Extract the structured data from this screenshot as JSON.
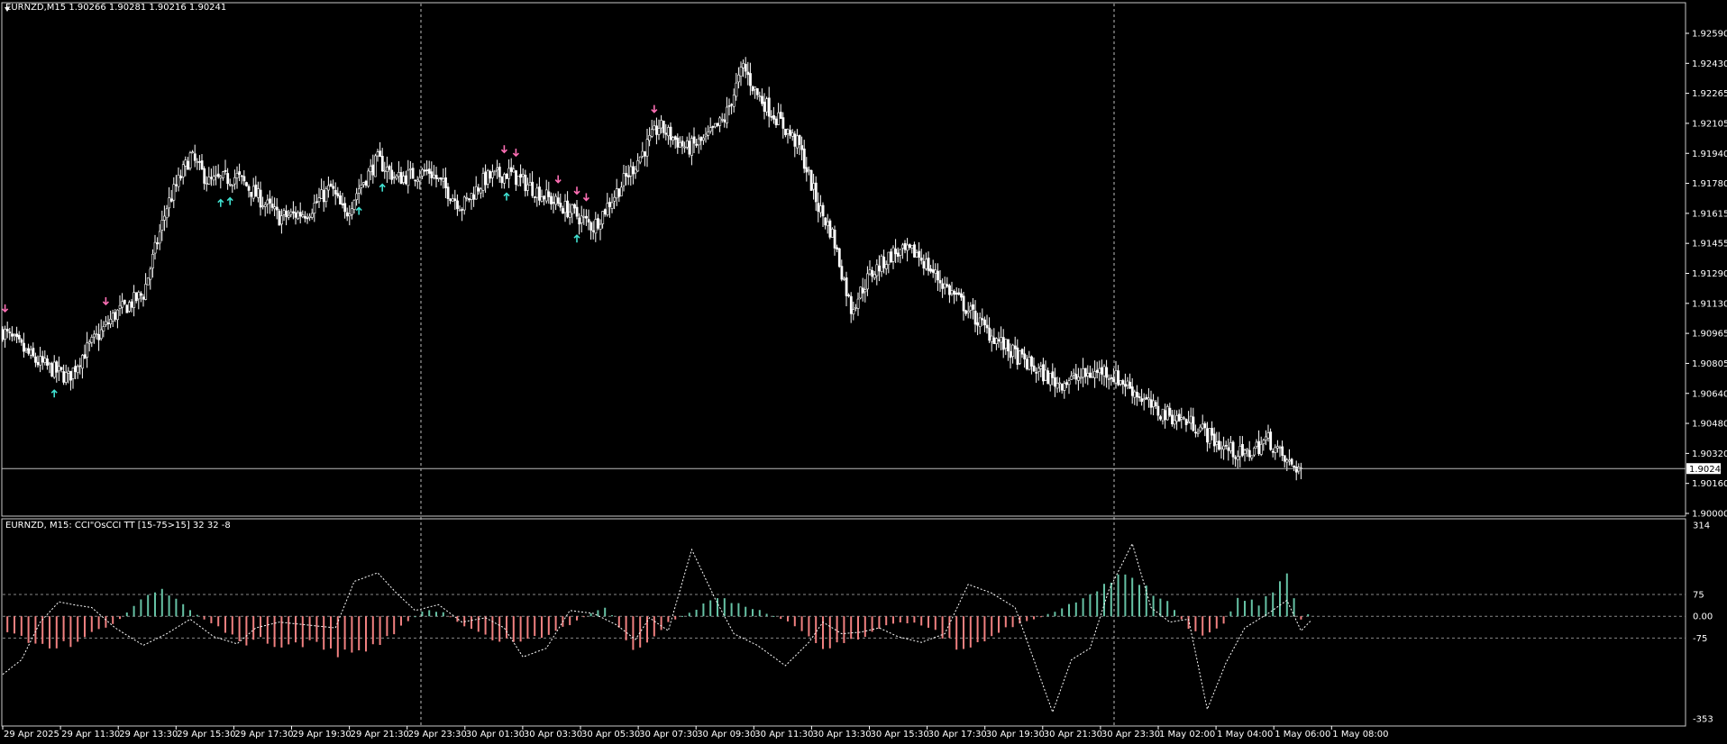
{
  "main_title": "EURNZD,M15  1.90266 1.90281 1.90216 1.90241",
  "sub_title": "EURNZD, M15: CCI\"OsCCI TT [15-75>15]  32 32 -8",
  "current_price_label": "1.90241",
  "chart_data": [
    {
      "type": "candlestick",
      "symbol": "EURNZD",
      "timeframe": "M15",
      "ohlc": {
        "open": 1.90266,
        "high": 1.90281,
        "low": 1.90216,
        "close": 1.90241
      },
      "price_ticks": [
        "1.92590",
        "1.92430",
        "1.92265",
        "1.92105",
        "1.91940",
        "1.91780",
        "1.91615",
        "1.91455",
        "1.91290",
        "1.91130",
        "1.90965",
        "1.90805",
        "1.90640",
        "1.90480",
        "1.90320",
        "1.90160",
        "1.90000"
      ],
      "ylim": [
        1.9,
        1.9259
      ],
      "current_price": 1.90241,
      "time_ticks": [
        "29 Apr 2025",
        "29 Apr 11:30",
        "29 Apr 13:30",
        "29 Apr 15:30",
        "29 Apr 17:30",
        "29 Apr 19:30",
        "29 Apr 21:30",
        "29 Apr 23:30",
        "30 Apr 01:30",
        "30 Apr 03:30",
        "30 Apr 05:30",
        "30 Apr 07:30",
        "30 Apr 09:30",
        "30 Apr 11:30",
        "30 Apr 13:30",
        "30 Apr 15:30",
        "30 Apr 17:30",
        "30 Apr 19:30",
        "30 Apr 21:30",
        "30 Apr 23:30",
        "1 May 02:00",
        "1 May 04:00",
        "1 May 06:00",
        "1 May 08:00"
      ],
      "period_separators": [
        "29 Apr 23:30",
        "30 Apr 23:30"
      ],
      "close_path": [
        [
          0,
          1.9098
        ],
        [
          14,
          1.9082
        ],
        [
          28,
          1.9073
        ],
        [
          34,
          1.9085
        ],
        [
          48,
          1.9107
        ],
        [
          60,
          1.9118
        ],
        [
          70,
          1.9165
        ],
        [
          80,
          1.9192
        ],
        [
          88,
          1.9178
        ],
        [
          100,
          1.9181
        ],
        [
          118,
          1.9159
        ],
        [
          130,
          1.9162
        ],
        [
          140,
          1.9175
        ],
        [
          146,
          1.916
        ],
        [
          152,
          1.9175
        ],
        [
          160,
          1.919
        ],
        [
          168,
          1.918
        ],
        [
          182,
          1.9184
        ],
        [
          196,
          1.9165
        ],
        [
          206,
          1.918
        ],
        [
          216,
          1.9183
        ],
        [
          232,
          1.917
        ],
        [
          244,
          1.9161
        ],
        [
          252,
          1.9154
        ],
        [
          270,
          1.9188
        ],
        [
          280,
          1.9208
        ],
        [
          292,
          1.9196
        ],
        [
          300,
          1.9201
        ],
        [
          308,
          1.9212
        ],
        [
          316,
          1.924
        ],
        [
          322,
          1.9225
        ],
        [
          332,
          1.921
        ],
        [
          340,
          1.9197
        ],
        [
          348,
          1.9165
        ],
        [
          354,
          1.915
        ],
        [
          362,
          1.911
        ],
        [
          370,
          1.9128
        ],
        [
          380,
          1.914
        ],
        [
          390,
          1.914
        ],
        [
          400,
          1.9125
        ],
        [
          410,
          1.9112
        ],
        [
          420,
          1.9098
        ],
        [
          430,
          1.9087
        ],
        [
          440,
          1.9078
        ],
        [
          450,
          1.907
        ],
        [
          456,
          1.9072
        ],
        [
          470,
          1.9077
        ],
        [
          480,
          1.9069
        ],
        [
          492,
          1.9055
        ],
        [
          500,
          1.9052
        ],
        [
          510,
          1.9047
        ],
        [
          520,
          1.9036
        ],
        [
          530,
          1.9031
        ],
        [
          540,
          1.904
        ],
        [
          548,
          1.9027
        ],
        [
          554,
          1.9024
        ]
      ],
      "signals": {
        "up_arrows": [
          22,
          93,
          97,
          152,
          162,
          215,
          245
        ],
        "down_arrows": [
          1,
          44,
          214,
          219,
          237,
          245,
          249,
          278
        ]
      },
      "colors": {
        "bull": "#000000",
        "bear": "#ffffff",
        "outline": "#ffffff",
        "up_arrow": "#40e0d0",
        "down_arrow": "#ff6fb5",
        "accent_green": "#0a8a0a"
      }
    },
    {
      "type": "bar",
      "name": "CCI\"OsCCI TT [15-75>15]",
      "values_shown": [
        32,
        32,
        -8
      ],
      "ylim": [
        -353,
        314
      ],
      "y_ticks": [
        "314",
        "75",
        "0.00",
        "-75",
        "-353"
      ],
      "levels": [
        75,
        0,
        -75
      ],
      "histogram_path": [
        [
          0,
          -40
        ],
        [
          10,
          -80
        ],
        [
          20,
          -110
        ],
        [
          30,
          -90
        ],
        [
          40,
          -55
        ],
        [
          48,
          -25
        ],
        [
          54,
          20
        ],
        [
          60,
          65
        ],
        [
          68,
          90
        ],
        [
          74,
          70
        ],
        [
          80,
          20
        ],
        [
          88,
          -20
        ],
        [
          96,
          -60
        ],
        [
          104,
          -90
        ],
        [
          112,
          -80
        ],
        [
          118,
          -110
        ],
        [
          124,
          -95
        ],
        [
          132,
          -90
        ],
        [
          140,
          -130
        ],
        [
          150,
          -130
        ],
        [
          158,
          -110
        ],
        [
          166,
          -60
        ],
        [
          174,
          -10
        ],
        [
          180,
          20
        ],
        [
          188,
          15
        ],
        [
          196,
          -30
        ],
        [
          206,
          -70
        ],
        [
          216,
          -85
        ],
        [
          224,
          -80
        ],
        [
          234,
          -60
        ],
        [
          244,
          -20
        ],
        [
          252,
          15
        ],
        [
          258,
          30
        ],
        [
          264,
          -50
        ],
        [
          270,
          -120
        ],
        [
          278,
          -70
        ],
        [
          284,
          -20
        ],
        [
          294,
          15
        ],
        [
          300,
          45
        ],
        [
          308,
          60
        ],
        [
          316,
          40
        ],
        [
          326,
          10
        ],
        [
          336,
          -20
        ],
        [
          350,
          -100
        ],
        [
          362,
          -90
        ],
        [
          372,
          -50
        ],
        [
          380,
          -25
        ],
        [
          388,
          -20
        ],
        [
          396,
          -40
        ],
        [
          408,
          -110
        ],
        [
          418,
          -80
        ],
        [
          428,
          -40
        ],
        [
          440,
          -10
        ],
        [
          450,
          20
        ],
        [
          460,
          60
        ],
        [
          470,
          100
        ],
        [
          478,
          140
        ],
        [
          486,
          100
        ],
        [
          496,
          60
        ],
        [
          506,
          -40
        ],
        [
          512,
          -60
        ],
        [
          520,
          -40
        ],
        [
          528,
          70
        ],
        [
          536,
          40
        ],
        [
          544,
          100
        ],
        [
          548,
          140
        ],
        [
          554,
          -10
        ],
        [
          560,
          25
        ]
      ],
      "line_path": [
        [
          0,
          -200
        ],
        [
          8,
          -150
        ],
        [
          16,
          -20
        ],
        [
          24,
          50
        ],
        [
          30,
          40
        ],
        [
          38,
          30
        ],
        [
          48,
          -40
        ],
        [
          60,
          -100
        ],
        [
          70,
          -60
        ],
        [
          80,
          -10
        ],
        [
          90,
          -70
        ],
        [
          100,
          -95
        ],
        [
          108,
          -40
        ],
        [
          118,
          -20
        ],
        [
          130,
          -30
        ],
        [
          142,
          -40
        ],
        [
          150,
          120
        ],
        [
          160,
          150
        ],
        [
          168,
          80
        ],
        [
          176,
          20
        ],
        [
          186,
          40
        ],
        [
          196,
          -20
        ],
        [
          206,
          -5
        ],
        [
          214,
          -40
        ],
        [
          222,
          -140
        ],
        [
          232,
          -110
        ],
        [
          242,
          20
        ],
        [
          252,
          10
        ],
        [
          262,
          -30
        ],
        [
          270,
          -80
        ],
        [
          276,
          -5
        ],
        [
          284,
          -50
        ],
        [
          294,
          230
        ],
        [
          304,
          60
        ],
        [
          312,
          -60
        ],
        [
          322,
          -100
        ],
        [
          334,
          -170
        ],
        [
          344,
          -90
        ],
        [
          350,
          -20
        ],
        [
          358,
          -60
        ],
        [
          366,
          -55
        ],
        [
          374,
          -40
        ],
        [
          382,
          -70
        ],
        [
          392,
          -90
        ],
        [
          402,
          -60
        ],
        [
          412,
          110
        ],
        [
          422,
          80
        ],
        [
          432,
          30
        ],
        [
          440,
          -150
        ],
        [
          448,
          -330
        ],
        [
          456,
          -150
        ],
        [
          464,
          -110
        ],
        [
          472,
          90
        ],
        [
          482,
          250
        ],
        [
          490,
          30
        ],
        [
          498,
          -20
        ],
        [
          506,
          -10
        ],
        [
          514,
          -320
        ],
        [
          522,
          -160
        ],
        [
          530,
          -40
        ],
        [
          540,
          10
        ],
        [
          548,
          55
        ],
        [
          554,
          -50
        ],
        [
          560,
          0
        ]
      ],
      "colors": {
        "positive": "#66c2a5",
        "negative": "#f08080",
        "line": "#ffffff"
      }
    }
  ]
}
